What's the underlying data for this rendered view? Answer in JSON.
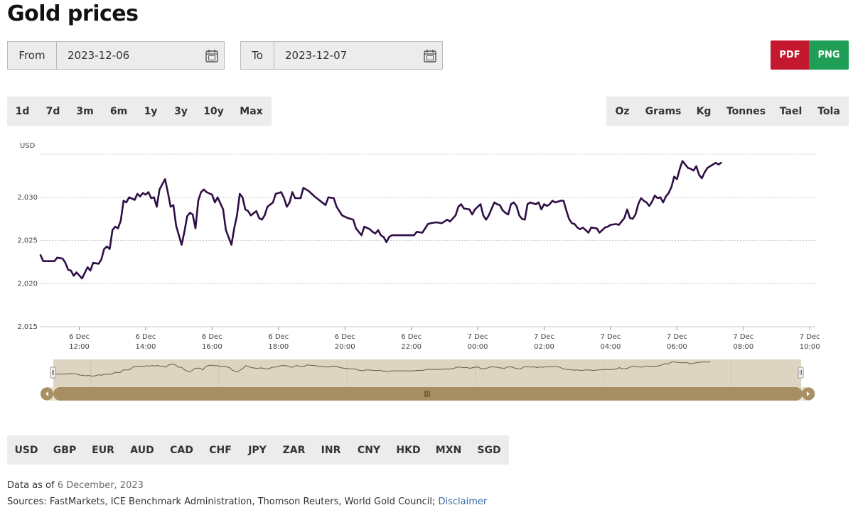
{
  "page": {
    "title": "Gold prices"
  },
  "date_range": {
    "from_label": "From",
    "from_value": "2023-12-06",
    "to_label": "To",
    "to_value": "2023-12-07"
  },
  "export": {
    "pdf_label": "PDF",
    "png_label": "PNG"
  },
  "periods": [
    "1d",
    "7d",
    "3m",
    "6m",
    "1y",
    "3y",
    "10y",
    "Max"
  ],
  "active_period": "1d",
  "units": [
    "Oz",
    "Grams",
    "Kg",
    "Tonnes",
    "Tael",
    "Tola"
  ],
  "active_unit": "Oz",
  "currencies": [
    "USD",
    "GBP",
    "EUR",
    "AUD",
    "CAD",
    "CHF",
    "JPY",
    "ZAR",
    "INR",
    "CNY",
    "HKD",
    "MXN",
    "SGD"
  ],
  "active_currency": "USD",
  "colors": {
    "line": "#2f0f45",
    "navigator_bg": "#ddd4c1",
    "navigator_track": "#a88f63",
    "navigator_line": "#6b5d46",
    "grid": "#c8c8c8",
    "currency_active": "#3a1257"
  },
  "footer": {
    "data_as_of_label": "Data as of",
    "data_as_of_value": "6 December, 2023",
    "sources_text": "Sources: FastMarkets, ICE Benchmark Administration, Thomson Reuters, World Gold Council;",
    "disclaimer_label": "Disclaimer"
  },
  "chart_data": {
    "type": "line",
    "ylabel": "USD",
    "ylim": [
      2015,
      2035
    ],
    "yticks": [
      2015,
      2020,
      2025,
      2030
    ],
    "ytick_labels": [
      "2,015",
      "2,020",
      "2,025",
      "2,030"
    ],
    "xlim": [
      "2023-12-06 10:50",
      "2023-12-07 10:10"
    ],
    "xticks": [
      {
        "time": "2023-12-06 12:00",
        "date": "6 Dec",
        "hour": "12:00"
      },
      {
        "time": "2023-12-06 14:00",
        "date": "6 Dec",
        "hour": "14:00"
      },
      {
        "time": "2023-12-06 16:00",
        "date": "6 Dec",
        "hour": "16:00"
      },
      {
        "time": "2023-12-06 18:00",
        "date": "6 Dec",
        "hour": "18:00"
      },
      {
        "time": "2023-12-06 20:00",
        "date": "6 Dec",
        "hour": "20:00"
      },
      {
        "time": "2023-12-06 22:00",
        "date": "6 Dec",
        "hour": "22:00"
      },
      {
        "time": "2023-12-07 00:00",
        "date": "7 Dec",
        "hour": "00:00"
      },
      {
        "time": "2023-12-07 02:00",
        "date": "7 Dec",
        "hour": "02:00"
      },
      {
        "time": "2023-12-07 04:00",
        "date": "7 Dec",
        "hour": "04:00"
      },
      {
        "time": "2023-12-07 06:00",
        "date": "7 Dec",
        "hour": "06:00"
      },
      {
        "time": "2023-12-07 08:00",
        "date": "7 Dec",
        "hour": "08:00"
      },
      {
        "time": "2023-12-07 10:00",
        "date": "7 Dec",
        "hour": "10:00"
      }
    ],
    "grid": true,
    "legend": "none",
    "series": [
      {
        "points": [
          [
            "2023-12-06 10:50",
            2023.3
          ],
          [
            "2023-12-06 10:55",
            2022.6
          ],
          [
            "2023-12-06 11:15",
            2022.6
          ],
          [
            "2023-12-06 11:20",
            2023.0
          ],
          [
            "2023-12-06 11:30",
            2022.9
          ],
          [
            "2023-12-06 11:35",
            2022.4
          ],
          [
            "2023-12-06 11:40",
            2021.6
          ],
          [
            "2023-12-06 11:45",
            2021.5
          ],
          [
            "2023-12-06 11:50",
            2020.9
          ],
          [
            "2023-12-06 11:55",
            2021.3
          ],
          [
            "2023-12-06 12:05",
            2020.6
          ],
          [
            "2023-12-06 12:15",
            2021.9
          ],
          [
            "2023-12-06 12:20",
            2021.5
          ],
          [
            "2023-12-06 12:25",
            2022.4
          ],
          [
            "2023-12-06 12:35",
            2022.3
          ],
          [
            "2023-12-06 12:40",
            2022.8
          ],
          [
            "2023-12-06 12:45",
            2024.0
          ],
          [
            "2023-12-06 12:50",
            2024.3
          ],
          [
            "2023-12-06 12:55",
            2024.0
          ],
          [
            "2023-12-06 13:00",
            2026.2
          ],
          [
            "2023-12-06 13:05",
            2026.6
          ],
          [
            "2023-12-06 13:10",
            2026.4
          ],
          [
            "2023-12-06 13:15",
            2027.3
          ],
          [
            "2023-12-06 13:20",
            2029.6
          ],
          [
            "2023-12-06 13:25",
            2029.4
          ],
          [
            "2023-12-06 13:30",
            2030.0
          ],
          [
            "2023-12-06 13:40",
            2029.7
          ],
          [
            "2023-12-06 13:45",
            2030.4
          ],
          [
            "2023-12-06 13:50",
            2030.1
          ],
          [
            "2023-12-06 13:55",
            2030.5
          ],
          [
            "2023-12-06 14:00",
            2030.3
          ],
          [
            "2023-12-06 14:05",
            2030.6
          ],
          [
            "2023-12-06 14:10",
            2029.9
          ],
          [
            "2023-12-06 14:15",
            2030.0
          ],
          [
            "2023-12-06 14:20",
            2028.9
          ],
          [
            "2023-12-06 14:25",
            2030.9
          ],
          [
            "2023-12-06 14:35",
            2032.1
          ],
          [
            "2023-12-06 14:40",
            2030.6
          ],
          [
            "2023-12-06 14:45",
            2028.9
          ],
          [
            "2023-12-06 14:50",
            2029.1
          ],
          [
            "2023-12-06 14:55",
            2026.7
          ],
          [
            "2023-12-06 15:05",
            2024.5
          ],
          [
            "2023-12-06 15:10",
            2026.0
          ],
          [
            "2023-12-06 15:15",
            2027.8
          ],
          [
            "2023-12-06 15:20",
            2028.2
          ],
          [
            "2023-12-06 15:25",
            2028.0
          ],
          [
            "2023-12-06 15:30",
            2026.4
          ],
          [
            "2023-12-06 15:35",
            2029.6
          ],
          [
            "2023-12-06 15:40",
            2030.6
          ],
          [
            "2023-12-06 15:45",
            2030.9
          ],
          [
            "2023-12-06 15:50",
            2030.6
          ],
          [
            "2023-12-06 16:00",
            2030.3
          ],
          [
            "2023-12-06 16:05",
            2029.4
          ],
          [
            "2023-12-06 16:10",
            2030.0
          ],
          [
            "2023-12-06 16:20",
            2028.6
          ],
          [
            "2023-12-06 16:25",
            2026.2
          ],
          [
            "2023-12-06 16:35",
            2024.5
          ],
          [
            "2023-12-06 16:40",
            2026.4
          ],
          [
            "2023-12-06 16:45",
            2027.9
          ],
          [
            "2023-12-06 16:50",
            2030.4
          ],
          [
            "2023-12-06 16:55",
            2030.0
          ],
          [
            "2023-12-06 17:00",
            2028.6
          ],
          [
            "2023-12-06 17:05",
            2028.4
          ],
          [
            "2023-12-06 17:10",
            2027.9
          ],
          [
            "2023-12-06 17:20",
            2028.4
          ],
          [
            "2023-12-06 17:25",
            2027.6
          ],
          [
            "2023-12-06 17:30",
            2027.4
          ],
          [
            "2023-12-06 17:35",
            2027.9
          ],
          [
            "2023-12-06 17:40",
            2028.9
          ],
          [
            "2023-12-06 17:50",
            2029.4
          ],
          [
            "2023-12-06 17:55",
            2030.4
          ],
          [
            "2023-12-06 18:05",
            2030.6
          ],
          [
            "2023-12-06 18:10",
            2029.9
          ],
          [
            "2023-12-06 18:15",
            2028.9
          ],
          [
            "2023-12-06 18:20",
            2029.4
          ],
          [
            "2023-12-06 18:25",
            2030.6
          ],
          [
            "2023-12-06 18:30",
            2029.9
          ],
          [
            "2023-12-06 18:40",
            2029.9
          ],
          [
            "2023-12-06 18:45",
            2031.1
          ],
          [
            "2023-12-06 18:55",
            2030.7
          ],
          [
            "2023-12-06 19:05",
            2030.1
          ],
          [
            "2023-12-06 19:15",
            2029.6
          ],
          [
            "2023-12-06 19:25",
            2029.1
          ],
          [
            "2023-12-06 19:30",
            2030.0
          ],
          [
            "2023-12-06 19:40",
            2029.9
          ],
          [
            "2023-12-06 19:45",
            2028.9
          ],
          [
            "2023-12-06 19:55",
            2027.9
          ],
          [
            "2023-12-06 20:05",
            2027.6
          ],
          [
            "2023-12-06 20:15",
            2027.4
          ],
          [
            "2023-12-06 20:20",
            2026.4
          ],
          [
            "2023-12-06 20:30",
            2025.6
          ],
          [
            "2023-12-06 20:35",
            2026.6
          ],
          [
            "2023-12-06 20:45",
            2026.3
          ],
          [
            "2023-12-06 20:50",
            2026.0
          ],
          [
            "2023-12-06 20:55",
            2025.8
          ],
          [
            "2023-12-06 21:00",
            2026.2
          ],
          [
            "2023-12-06 21:05",
            2025.6
          ],
          [
            "2023-12-06 21:10",
            2025.4
          ],
          [
            "2023-12-06 21:15",
            2024.8
          ],
          [
            "2023-12-06 21:20",
            2025.4
          ],
          [
            "2023-12-06 21:25",
            2025.6
          ],
          [
            "2023-12-06 22:05",
            2025.6
          ],
          [
            "2023-12-06 22:10",
            2026.0
          ],
          [
            "2023-12-06 22:20",
            2025.9
          ],
          [
            "2023-12-06 22:25",
            2026.4
          ],
          [
            "2023-12-06 22:30",
            2026.9
          ],
          [
            "2023-12-06 22:35",
            2027.0
          ],
          [
            "2023-12-06 22:45",
            2027.1
          ],
          [
            "2023-12-06 22:55",
            2027.0
          ],
          [
            "2023-12-06 23:05",
            2027.4
          ],
          [
            "2023-12-06 23:10",
            2027.2
          ],
          [
            "2023-12-06 23:20",
            2027.9
          ],
          [
            "2023-12-06 23:25",
            2028.9
          ],
          [
            "2023-12-06 23:30",
            2029.2
          ],
          [
            "2023-12-06 23:35",
            2028.7
          ],
          [
            "2023-12-06 23:45",
            2028.6
          ],
          [
            "2023-12-06 23:50",
            2028.0
          ],
          [
            "2023-12-06 23:55",
            2028.6
          ],
          [
            "2023-12-07 00:00",
            2028.9
          ],
          [
            "2023-12-07 00:05",
            2029.2
          ],
          [
            "2023-12-07 00:10",
            2027.9
          ],
          [
            "2023-12-07 00:15",
            2027.4
          ],
          [
            "2023-12-07 00:20",
            2027.9
          ],
          [
            "2023-12-07 00:30",
            2029.4
          ],
          [
            "2023-12-07 00:35",
            2029.2
          ],
          [
            "2023-12-07 00:40",
            2029.1
          ],
          [
            "2023-12-07 00:45",
            2028.5
          ],
          [
            "2023-12-07 00:50",
            2028.2
          ],
          [
            "2023-12-07 00:55",
            2028.0
          ],
          [
            "2023-12-07 01:00",
            2029.2
          ],
          [
            "2023-12-07 01:05",
            2029.4
          ],
          [
            "2023-12-07 01:10",
            2029.0
          ],
          [
            "2023-12-07 01:15",
            2027.9
          ],
          [
            "2023-12-07 01:20",
            2027.5
          ],
          [
            "2023-12-07 01:25",
            2027.4
          ],
          [
            "2023-12-07 01:30",
            2029.2
          ],
          [
            "2023-12-07 01:35",
            2029.4
          ],
          [
            "2023-12-07 01:45",
            2029.2
          ],
          [
            "2023-12-07 01:50",
            2029.4
          ],
          [
            "2023-12-07 01:55",
            2028.6
          ],
          [
            "2023-12-07 02:00",
            2029.2
          ],
          [
            "2023-12-07 02:05",
            2029.0
          ],
          [
            "2023-12-07 02:10",
            2029.2
          ],
          [
            "2023-12-07 02:15",
            2029.6
          ],
          [
            "2023-12-07 02:20",
            2029.4
          ],
          [
            "2023-12-07 02:30",
            2029.6
          ],
          [
            "2023-12-07 02:35",
            2029.6
          ],
          [
            "2023-12-07 02:40",
            2028.5
          ],
          [
            "2023-12-07 02:45",
            2027.5
          ],
          [
            "2023-12-07 02:50",
            2027.0
          ],
          [
            "2023-12-07 02:55",
            2026.9
          ],
          [
            "2023-12-07 03:00",
            2026.5
          ],
          [
            "2023-12-07 03:05",
            2026.3
          ],
          [
            "2023-12-07 03:10",
            2026.5
          ],
          [
            "2023-12-07 03:15",
            2026.2
          ],
          [
            "2023-12-07 03:20",
            2025.9
          ],
          [
            "2023-12-07 03:25",
            2026.5
          ],
          [
            "2023-12-07 03:35",
            2026.4
          ],
          [
            "2023-12-07 03:40",
            2025.9
          ],
          [
            "2023-12-07 03:45",
            2026.2
          ],
          [
            "2023-12-07 03:50",
            2026.5
          ],
          [
            "2023-12-07 03:55",
            2026.6
          ],
          [
            "2023-12-07 04:00",
            2026.8
          ],
          [
            "2023-12-07 04:10",
            2026.9
          ],
          [
            "2023-12-07 04:15",
            2026.8
          ],
          [
            "2023-12-07 04:20",
            2027.2
          ],
          [
            "2023-12-07 04:25",
            2027.6
          ],
          [
            "2023-12-07 04:30",
            2028.6
          ],
          [
            "2023-12-07 04:35",
            2027.6
          ],
          [
            "2023-12-07 04:40",
            2027.5
          ],
          [
            "2023-12-07 04:45",
            2028.0
          ],
          [
            "2023-12-07 04:50",
            2029.2
          ],
          [
            "2023-12-07 04:55",
            2029.9
          ],
          [
            "2023-12-07 05:00",
            2029.6
          ],
          [
            "2023-12-07 05:05",
            2029.4
          ],
          [
            "2023-12-07 05:10",
            2029.0
          ],
          [
            "2023-12-07 05:15",
            2029.5
          ],
          [
            "2023-12-07 05:20",
            2030.2
          ],
          [
            "2023-12-07 05:25",
            2029.9
          ],
          [
            "2023-12-07 05:30",
            2030.0
          ],
          [
            "2023-12-07 05:35",
            2029.4
          ],
          [
            "2023-12-07 05:40",
            2030.1
          ],
          [
            "2023-12-07 05:45",
            2030.5
          ],
          [
            "2023-12-07 05:50",
            2031.2
          ],
          [
            "2023-12-07 05:55",
            2032.4
          ],
          [
            "2023-12-07 06:00",
            2032.1
          ],
          [
            "2023-12-07 06:05",
            2033.3
          ],
          [
            "2023-12-07 06:10",
            2034.2
          ],
          [
            "2023-12-07 06:15",
            2033.8
          ],
          [
            "2023-12-07 06:20",
            2033.4
          ],
          [
            "2023-12-07 06:25",
            2033.3
          ],
          [
            "2023-12-07 06:30",
            2033.1
          ],
          [
            "2023-12-07 06:35",
            2033.6
          ],
          [
            "2023-12-07 06:40",
            2032.6
          ],
          [
            "2023-12-07 06:45",
            2032.2
          ],
          [
            "2023-12-07 06:50",
            2032.9
          ],
          [
            "2023-12-07 06:55",
            2033.4
          ],
          [
            "2023-12-07 07:00",
            2033.6
          ],
          [
            "2023-12-07 07:05",
            2033.8
          ],
          [
            "2023-12-07 07:10",
            2034.0
          ],
          [
            "2023-12-07 07:15",
            2033.8
          ],
          [
            "2023-12-07 07:20",
            2034.0
          ]
        ]
      }
    ]
  }
}
